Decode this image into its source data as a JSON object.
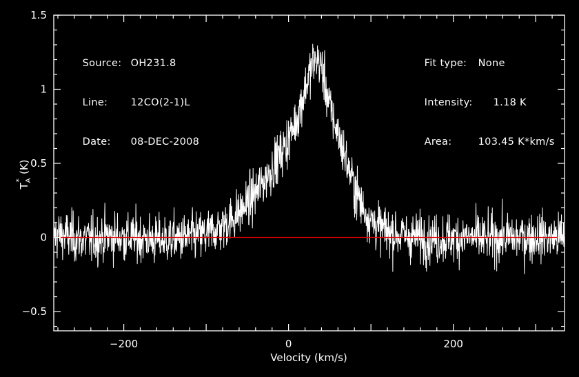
{
  "header_left": [
    {
      "key": "Source:",
      "value": "OH231.8"
    },
    {
      "key": "Line:",
      "value": "12CO(2-1)L"
    },
    {
      "key": "Date:",
      "value": "08-DEC-2008"
    }
  ],
  "header_right": [
    {
      "key": "Fit type:",
      "value": "None"
    },
    {
      "key": "Intensity:",
      "value": "1.18 K"
    },
    {
      "key": "Area:",
      "value": "103.45 K*km/s"
    }
  ],
  "colors": {
    "background": "#000000",
    "axes": "#ffffff",
    "spectrum": "#ffffff",
    "baseline": "#e00000"
  },
  "chart_data": {
    "type": "line",
    "title": "",
    "xlabel": "Velocity (km/s)",
    "ylabel": "T",
    "ylabel_sub": "A",
    "ylabel_sup": "*",
    "ylabel_unit": "(K)",
    "xlim": [
      -285,
      335
    ],
    "ylim": [
      -0.63,
      1.5
    ],
    "xticks": [
      -200,
      0,
      200
    ],
    "xtick_labels": [
      "−200",
      "0",
      "200"
    ],
    "yticks": [
      -0.5,
      0,
      0.5,
      1,
      1.5
    ],
    "ytick_labels": [
      "−0.5",
      "0",
      "0.5",
      "1",
      "1.5"
    ],
    "baseline_y": 0,
    "grid": false,
    "series": [
      {
        "x": [
          -280,
          -260,
          -240,
          -220,
          -200,
          -180,
          -160,
          -140,
          -120,
          -100,
          -90,
          -80,
          -70,
          -60,
          -50,
          -40,
          -30,
          -20,
          -10,
          0,
          10,
          20,
          25,
          30,
          35,
          40,
          45,
          50,
          60,
          70,
          80,
          90,
          100,
          110,
          120,
          140,
          160,
          180,
          200,
          220,
          240,
          260,
          280,
          300,
          320,
          330
        ],
        "y": [
          0.02,
          0,
          -0.02,
          0.01,
          0,
          0,
          -0.02,
          -0.01,
          0,
          0.02,
          0.05,
          0.08,
          0.12,
          0.17,
          0.23,
          0.3,
          0.38,
          0.47,
          0.56,
          0.66,
          0.8,
          1.0,
          1.1,
          1.18,
          1.2,
          1.15,
          1.02,
          0.88,
          0.7,
          0.52,
          0.34,
          0.2,
          0.12,
          0.07,
          0.04,
          0.01,
          0,
          -0.01,
          0,
          0,
          -0.01,
          0,
          0,
          0.01,
          0,
          0
        ]
      }
    ],
    "noise_rms": 0.13
  }
}
